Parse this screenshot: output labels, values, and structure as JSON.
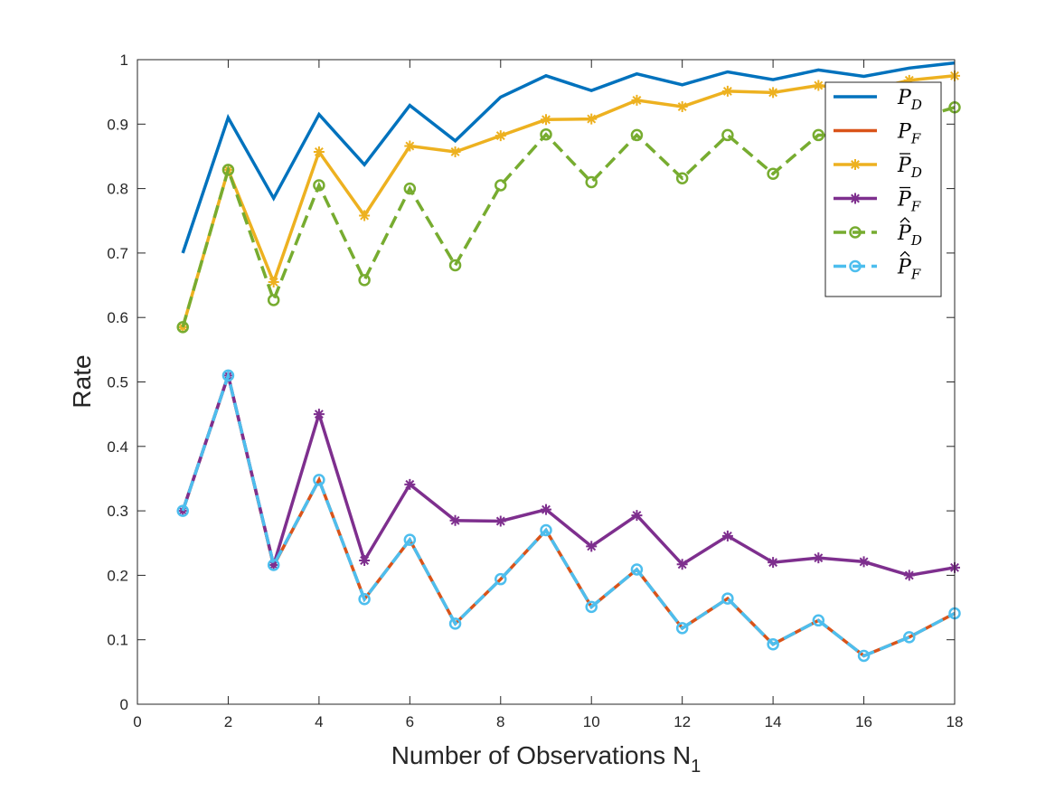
{
  "chart_data": {
    "type": "line",
    "title": "",
    "xlabel": "Number of Observations N",
    "xlabel_subscript": "1",
    "ylabel": "Rate",
    "xlim": [
      0,
      18
    ],
    "ylim": [
      0,
      1
    ],
    "xticks": [
      0,
      2,
      4,
      6,
      8,
      10,
      12,
      14,
      16,
      18
    ],
    "yticks": [
      0,
      0.1,
      0.2,
      0.3,
      0.4,
      0.5,
      0.6,
      0.7,
      0.8,
      0.9,
      1
    ],
    "ytick_labels": [
      "0",
      "0.1",
      "0.2",
      "0.3",
      "0.4",
      "0.5",
      "0.6",
      "0.7",
      "0.8",
      "0.9",
      "1"
    ],
    "grid": false,
    "legend_position": "top-right",
    "x": [
      1,
      2,
      3,
      4,
      5,
      6,
      7,
      8,
      9,
      10,
      11,
      12,
      13,
      14,
      15,
      16,
      17,
      18
    ],
    "series": [
      {
        "name": "P_D",
        "label_base": "P",
        "label_sub": "D",
        "accent": "none",
        "color": "#0072BD",
        "dash": "solid",
        "marker": "none",
        "values": [
          0.7,
          0.91,
          0.785,
          0.915,
          0.837,
          0.929,
          0.874,
          0.942,
          0.975,
          0.952,
          0.978,
          0.961,
          0.981,
          0.969,
          0.984,
          0.974,
          0.987,
          0.995
        ]
      },
      {
        "name": "P_F",
        "label_base": "P",
        "label_sub": "F",
        "accent": "none",
        "color": "#D95319",
        "dash": "solid",
        "marker": "none",
        "values": [
          0.3,
          0.51,
          0.215,
          0.348,
          0.163,
          0.255,
          0.125,
          0.194,
          0.27,
          0.151,
          0.209,
          0.118,
          0.164,
          0.093,
          0.13,
          0.075,
          0.104,
          0.141
        ]
      },
      {
        "name": "bar P_D",
        "label_base": "P",
        "label_sub": "D",
        "accent": "bar",
        "color": "#EDB120",
        "dash": "solid",
        "marker": "star",
        "values": [
          0.585,
          0.829,
          0.655,
          0.857,
          0.758,
          0.866,
          0.857,
          0.882,
          0.907,
          0.908,
          0.937,
          0.927,
          0.951,
          0.949,
          0.96,
          0.952,
          0.968,
          0.975
        ]
      },
      {
        "name": "bar P_F",
        "label_base": "P",
        "label_sub": "F",
        "accent": "bar",
        "color": "#7E2F8E",
        "dash": "solid",
        "marker": "star",
        "values": [
          0.3,
          0.51,
          0.216,
          0.45,
          0.223,
          0.341,
          0.285,
          0.284,
          0.302,
          0.245,
          0.293,
          0.217,
          0.261,
          0.22,
          0.227,
          0.221,
          0.2,
          0.212
        ]
      },
      {
        "name": "hat P_D",
        "label_base": "P",
        "label_sub": "D",
        "accent": "hat",
        "color": "#77AC30",
        "dash": "dashed",
        "marker": "circle",
        "values": [
          0.585,
          0.829,
          0.627,
          0.805,
          0.658,
          0.8,
          0.681,
          0.805,
          0.884,
          0.81,
          0.883,
          0.816,
          0.883,
          0.823,
          0.883,
          0.88,
          0.905,
          0.926
        ]
      },
      {
        "name": "hat P_F",
        "label_base": "P",
        "label_sub": "F",
        "accent": "hat",
        "color": "#4DBEEE",
        "dash": "dashed",
        "marker": "circle",
        "values": [
          0.3,
          0.51,
          0.216,
          0.348,
          0.163,
          0.255,
          0.125,
          0.194,
          0.27,
          0.151,
          0.209,
          0.118,
          0.164,
          0.093,
          0.13,
          0.075,
          0.104,
          0.141
        ]
      }
    ]
  }
}
